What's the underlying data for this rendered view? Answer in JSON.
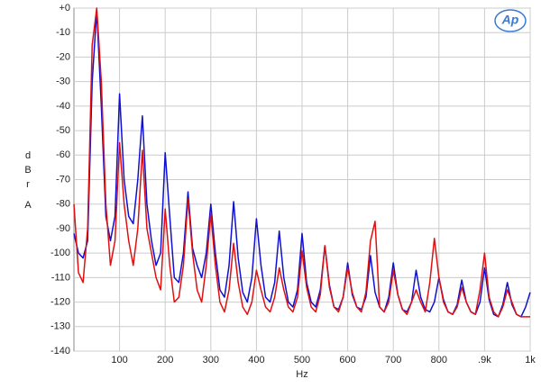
{
  "chart_data": {
    "type": "line",
    "x_label": "Hz",
    "y_label": "dBr",
    "y_label_unit": "A",
    "logo": "Ap",
    "xlim": [
      0,
      1000
    ],
    "xticks": [
      100,
      200,
      300,
      400,
      500,
      600,
      700,
      800,
      {
        "value": 900,
        "label": ".9k"
      },
      {
        "value": 1000,
        "label": "1k"
      }
    ],
    "ylim": [
      -140,
      0
    ],
    "yticks": [
      {
        "value": 0,
        "label": "+0"
      },
      -10,
      -20,
      -30,
      -40,
      -50,
      -60,
      -70,
      -80,
      -90,
      -100,
      -110,
      -120,
      -130,
      -140
    ],
    "grid": true,
    "x": [
      0,
      10,
      20,
      30,
      40,
      50,
      60,
      70,
      80,
      90,
      100,
      110,
      120,
      130,
      140,
      150,
      160,
      170,
      180,
      190,
      200,
      210,
      220,
      230,
      240,
      250,
      260,
      270,
      280,
      290,
      300,
      310,
      320,
      330,
      340,
      350,
      360,
      370,
      380,
      390,
      400,
      410,
      420,
      430,
      440,
      450,
      460,
      470,
      480,
      490,
      500,
      510,
      520,
      530,
      540,
      550,
      560,
      570,
      580,
      590,
      600,
      610,
      620,
      630,
      640,
      650,
      660,
      670,
      680,
      690,
      700,
      710,
      720,
      730,
      740,
      750,
      760,
      770,
      780,
      790,
      800,
      810,
      820,
      830,
      840,
      850,
      860,
      870,
      880,
      890,
      900,
      910,
      920,
      930,
      940,
      950,
      960,
      970,
      980,
      990,
      1000
    ],
    "series": [
      {
        "color": "#1010d0",
        "values": [
          -92,
          -100,
          -102,
          -95,
          -30,
          -1,
          -40,
          -85,
          -95,
          -85,
          -35,
          -70,
          -85,
          -88,
          -70,
          -44,
          -80,
          -95,
          -105,
          -100,
          -59,
          -85,
          -110,
          -112,
          -100,
          -75,
          -98,
          -105,
          -110,
          -100,
          -80,
          -100,
          -115,
          -118,
          -105,
          -79,
          -102,
          -116,
          -120,
          -110,
          -86,
          -105,
          -118,
          -120,
          -112,
          -91,
          -110,
          -120,
          -122,
          -115,
          -92,
          -112,
          -120,
          -122,
          -115,
          -97,
          -113,
          -122,
          -123,
          -118,
          -104,
          -117,
          -122,
          -123,
          -118,
          -101,
          -116,
          -122,
          -124,
          -118,
          -104,
          -117,
          -123,
          -124,
          -120,
          -107,
          -118,
          -123,
          -124,
          -120,
          -110,
          -119,
          -124,
          -125,
          -121,
          -111,
          -120,
          -124,
          -125,
          -120,
          -106,
          -119,
          -125,
          -126,
          -121,
          -112,
          -121,
          -125,
          -126,
          -122,
          -116
        ]
      },
      {
        "color": "#e01010",
        "values": [
          -80,
          -108,
          -112,
          -90,
          -15,
          0,
          -30,
          -80,
          -105,
          -95,
          -55,
          -80,
          -95,
          -105,
          -90,
          -58,
          -90,
          -100,
          -110,
          -115,
          -82,
          -105,
          -120,
          -118,
          -105,
          -78,
          -100,
          -115,
          -120,
          -105,
          -84,
          -105,
          -120,
          -124,
          -115,
          -96,
          -112,
          -122,
          -125,
          -120,
          -107,
          -115,
          -122,
          -124,
          -118,
          -106,
          -115,
          -122,
          -124,
          -118,
          -99,
          -114,
          -122,
          -124,
          -117,
          -97,
          -114,
          -122,
          -124,
          -118,
          -106,
          -116,
          -122,
          -124,
          -116,
          -95,
          -87,
          -122,
          -124,
          -120,
          -107,
          -117,
          -123,
          -125,
          -120,
          -115,
          -120,
          -124,
          -112,
          -94,
          -110,
          -120,
          -124,
          -125,
          -122,
          -114,
          -120,
          -124,
          -125,
          -115,
          -100,
          -118,
          -124,
          -126,
          -122,
          -115,
          -120,
          -125,
          -126,
          -126,
          -126
        ]
      }
    ]
  }
}
